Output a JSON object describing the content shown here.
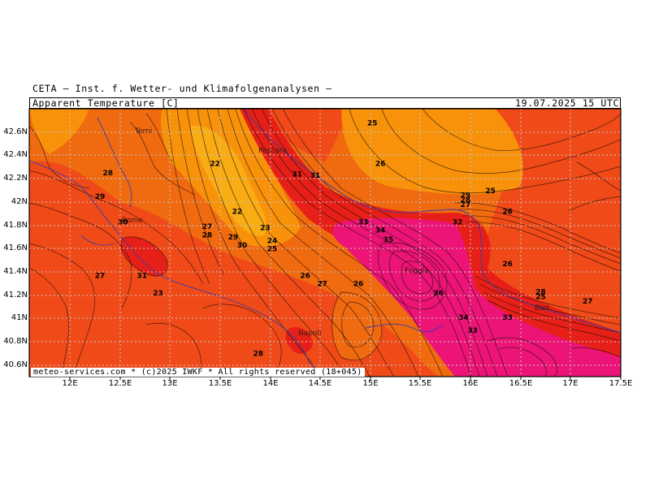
{
  "header": {
    "agency": "CETA — Inst. f. Wetter- und Klimafolgenanalysen —",
    "parameter": "Apparent Temperature [C]",
    "valid_time": "19.07.2025 15 UTC"
  },
  "credit": "meteo-services.com * (c)2025 IWKF * All rights reserved (18+045)",
  "colors": {
    "warm": "#f06a10",
    "hot": "#f04a18",
    "very_hot": "#e62018",
    "extreme": "#ec1476",
    "cool": "#f7920a",
    "cooler": "#f9ac14"
  },
  "axes": {
    "lat_labels": [
      "42.6N",
      "42.4N",
      "42.2N",
      "42N",
      "41.8N",
      "41.6N",
      "41.4N",
      "41.2N",
      "41N",
      "40.8N",
      "40.6N"
    ],
    "lon_labels": [
      "12E",
      "12.5E",
      "13E",
      "13.5E",
      "14E",
      "14.5E",
      "15E",
      "15.5E",
      "16E",
      "16.5E",
      "17E",
      "17.5E"
    ]
  },
  "cities": [
    "Terni",
    "Pescara",
    "Rome",
    "Napoli",
    "Foggia",
    "Bari"
  ],
  "contour_labels": [
    {
      "text": "25",
      "lon": 15.02,
      "lat": 42.68
    },
    {
      "text": "22",
      "lon": 13.45,
      "lat": 42.33
    },
    {
      "text": "28",
      "lon": 12.38,
      "lat": 42.25
    },
    {
      "text": "29",
      "lon": 12.3,
      "lat": 42.05
    },
    {
      "text": "30",
      "lon": 12.53,
      "lat": 41.83
    },
    {
      "text": "22",
      "lon": 13.67,
      "lat": 41.92
    },
    {
      "text": "27",
      "lon": 13.37,
      "lat": 41.79
    },
    {
      "text": "28",
      "lon": 13.37,
      "lat": 41.72
    },
    {
      "text": "29",
      "lon": 13.63,
      "lat": 41.7
    },
    {
      "text": "30",
      "lon": 13.72,
      "lat": 41.63
    },
    {
      "text": "23",
      "lon": 13.95,
      "lat": 41.78
    },
    {
      "text": "24",
      "lon": 14.02,
      "lat": 41.67
    },
    {
      "text": "25",
      "lon": 14.02,
      "lat": 41.6
    },
    {
      "text": "31",
      "lon": 14.27,
      "lat": 42.24
    },
    {
      "text": "31",
      "lon": 14.45,
      "lat": 42.23
    },
    {
      "text": "26",
      "lon": 15.1,
      "lat": 42.33
    },
    {
      "text": "25",
      "lon": 16.2,
      "lat": 42.1
    },
    {
      "text": "29",
      "lon": 15.95,
      "lat": 42.06
    },
    {
      "text": "28",
      "lon": 15.95,
      "lat": 42.02
    },
    {
      "text": "27",
      "lon": 15.95,
      "lat": 41.98
    },
    {
      "text": "26",
      "lon": 16.37,
      "lat": 41.92
    },
    {
      "text": "32",
      "lon": 15.87,
      "lat": 41.83
    },
    {
      "text": "33",
      "lon": 14.93,
      "lat": 41.83
    },
    {
      "text": "34",
      "lon": 15.1,
      "lat": 41.76
    },
    {
      "text": "35",
      "lon": 15.18,
      "lat": 41.68
    },
    {
      "text": "26",
      "lon": 16.37,
      "lat": 41.47
    },
    {
      "text": "27",
      "lon": 12.3,
      "lat": 41.37
    },
    {
      "text": "31",
      "lon": 12.72,
      "lat": 41.37
    },
    {
      "text": "23",
      "lon": 12.88,
      "lat": 41.22
    },
    {
      "text": "26",
      "lon": 14.35,
      "lat": 41.37
    },
    {
      "text": "27",
      "lon": 14.52,
      "lat": 41.3
    },
    {
      "text": "26",
      "lon": 14.88,
      "lat": 41.3
    },
    {
      "text": "36",
      "lon": 15.68,
      "lat": 41.22
    },
    {
      "text": "28",
      "lon": 16.7,
      "lat": 41.23
    },
    {
      "text": "25",
      "lon": 16.7,
      "lat": 41.19
    },
    {
      "text": "27",
      "lon": 17.17,
      "lat": 41.15
    },
    {
      "text": "34",
      "lon": 15.93,
      "lat": 41.01
    },
    {
      "text": "33",
      "lon": 16.37,
      "lat": 41.01
    },
    {
      "text": "33",
      "lon": 16.02,
      "lat": 40.9
    },
    {
      "text": "28",
      "lon": 13.88,
      "lat": 40.7
    }
  ]
}
